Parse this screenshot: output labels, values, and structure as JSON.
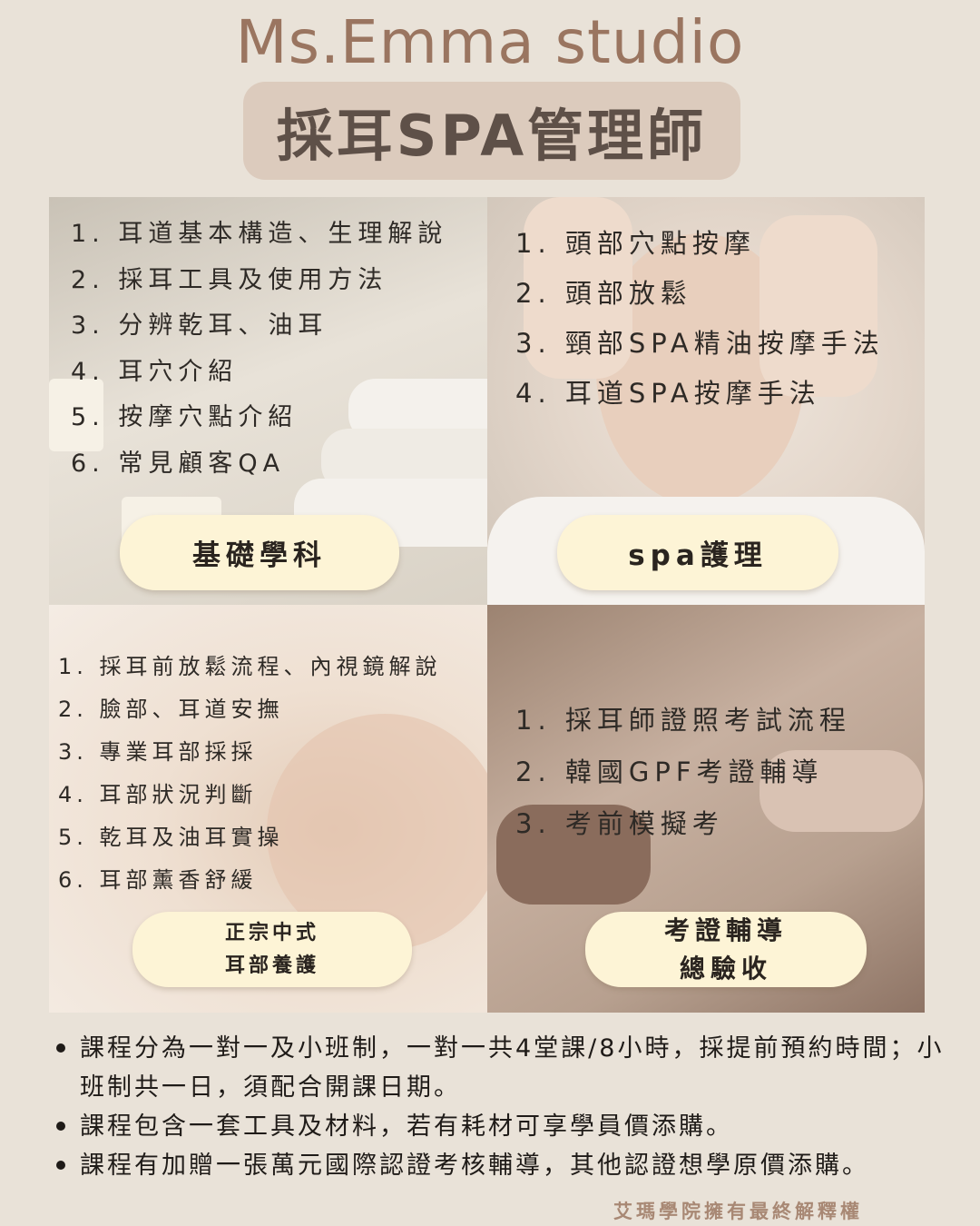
{
  "brand": "Ms.Emma studio",
  "title": "採耳SPA管理師",
  "panels": [
    {
      "items": [
        "1. 耳道基本構造、生理解說",
        "2. 採耳工具及使用方法",
        "3. 分辨乾耳、油耳",
        "4. 耳穴介紹",
        "5. 按摩穴點介紹",
        "6. 常見顧客QA"
      ],
      "button": "基礎學科"
    },
    {
      "items": [
        "1. 頭部穴點按摩",
        "2. 頭部放鬆",
        "3. 頸部SPA精油按摩手法",
        "4. 耳道SPA按摩手法"
      ],
      "button": "spa護理"
    },
    {
      "items": [
        "1. 採耳前放鬆流程、內視鏡解說",
        "2. 臉部、耳道安撫",
        "3. 專業耳部採採",
        "4. 耳部狀況判斷",
        "5. 乾耳及油耳實操",
        "6. 耳部薰香舒緩"
      ],
      "button_line1": "正宗中式",
      "button_line2": "耳部養護"
    },
    {
      "items": [
        "1. 採耳師證照考試流程",
        "2. 韓國GPF考證輔導",
        "3. 考前模擬考"
      ],
      "button_line1": "考證輔導",
      "button_line2": "總驗收"
    }
  ],
  "notes": [
    "課程分為一對一及小班制，一對一共4堂課/8小時，採提前預約時間；小班制共一日，須配合開課日期。",
    "課程包含一套工具及材料，若有耗材可享學員價添購。",
    "課程有加贈一張萬元國際認證考核輔導，其他認證想學原價添購。"
  ],
  "rights": "艾瑪學院擁有最終解釋權"
}
